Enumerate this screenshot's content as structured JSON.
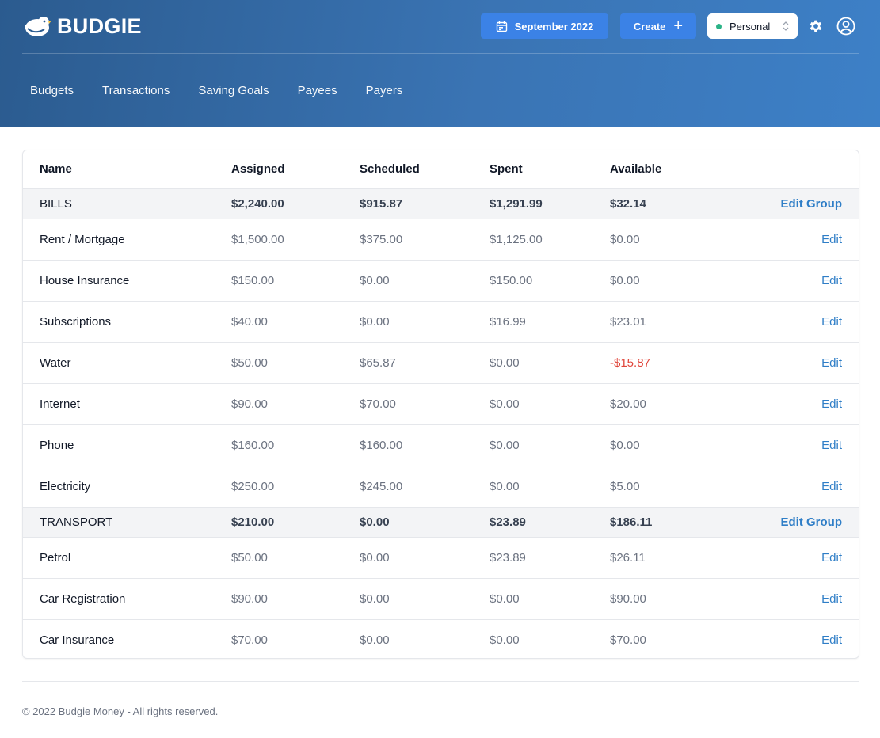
{
  "app": {
    "name": "BUDGIE",
    "month_label": "September 2022",
    "create_label": "Create",
    "create_icon": "+",
    "profile_selected": "Personal",
    "profile_status_color": "#2bb387",
    "accent_color": "#3b82e6",
    "link_color": "#2f7ec7",
    "negative_color": "#e0453a"
  },
  "nav": [
    {
      "label": "Budgets"
    },
    {
      "label": "Transactions"
    },
    {
      "label": "Saving Goals"
    },
    {
      "label": "Payees"
    },
    {
      "label": "Payers"
    }
  ],
  "table": {
    "columns": [
      "Name",
      "Assigned",
      "Scheduled",
      "Spent",
      "Available"
    ],
    "groups": [
      {
        "name": "BILLS",
        "assigned": "$2,240.00",
        "scheduled": "$915.87",
        "spent": "$1,291.99",
        "available": "$32.14",
        "action": "Edit Group",
        "rows": [
          {
            "name": "Rent / Mortgage",
            "assigned": "$1,500.00",
            "scheduled": "$375.00",
            "spent": "$1,125.00",
            "available": "$0.00",
            "action": "Edit"
          },
          {
            "name": "House Insurance",
            "assigned": "$150.00",
            "scheduled": "$0.00",
            "spent": "$150.00",
            "available": "$0.00",
            "action": "Edit"
          },
          {
            "name": "Subscriptions",
            "assigned": "$40.00",
            "scheduled": "$0.00",
            "spent": "$16.99",
            "available": "$23.01",
            "action": "Edit"
          },
          {
            "name": "Water",
            "assigned": "$50.00",
            "scheduled": "$65.87",
            "spent": "$0.00",
            "available": "-$15.87",
            "action": "Edit",
            "negative": true
          },
          {
            "name": "Internet",
            "assigned": "$90.00",
            "scheduled": "$70.00",
            "spent": "$0.00",
            "available": "$20.00",
            "action": "Edit"
          },
          {
            "name": "Phone",
            "assigned": "$160.00",
            "scheduled": "$160.00",
            "spent": "$0.00",
            "available": "$0.00",
            "action": "Edit"
          },
          {
            "name": "Electricity",
            "assigned": "$250.00",
            "scheduled": "$245.00",
            "spent": "$0.00",
            "available": "$5.00",
            "action": "Edit"
          }
        ]
      },
      {
        "name": "TRANSPORT",
        "assigned": "$210.00",
        "scheduled": "$0.00",
        "spent": "$23.89",
        "available": "$186.11",
        "action": "Edit Group",
        "rows": [
          {
            "name": "Petrol",
            "assigned": "$50.00",
            "scheduled": "$0.00",
            "spent": "$23.89",
            "available": "$26.11",
            "action": "Edit"
          },
          {
            "name": "Car Registration",
            "assigned": "$90.00",
            "scheduled": "$0.00",
            "spent": "$0.00",
            "available": "$90.00",
            "action": "Edit"
          },
          {
            "name": "Car Insurance",
            "assigned": "$70.00",
            "scheduled": "$0.00",
            "spent": "$0.00",
            "available": "$70.00",
            "action": "Edit"
          }
        ]
      }
    ]
  },
  "footer": {
    "copyright": "© 2022 Budgie Money - All rights reserved."
  }
}
